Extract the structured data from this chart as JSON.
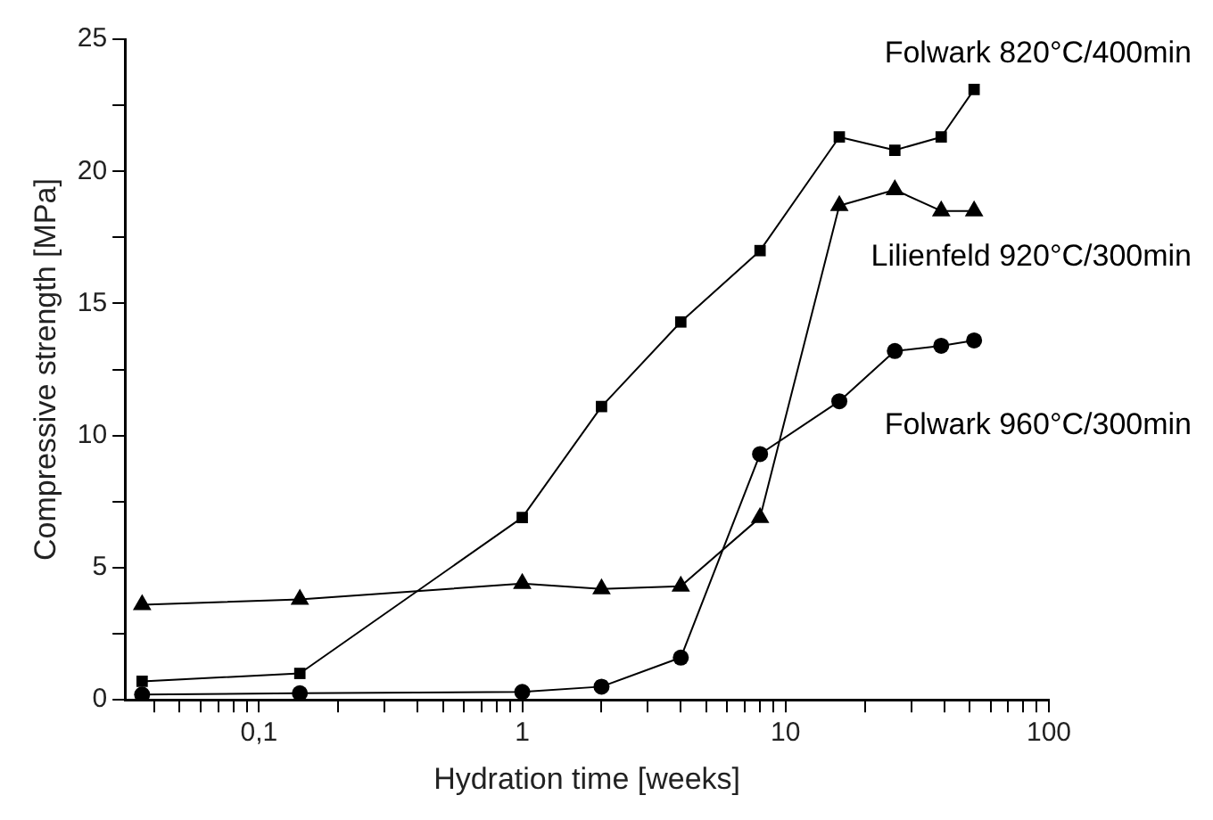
{
  "chart_data": {
    "type": "line",
    "xlabel": "Hydration time [weeks]",
    "ylabel": "Compressive strength [MPa]",
    "log": "x",
    "grid": false,
    "legend": false,
    "line_style": "solid",
    "x": [
      0.036,
      0.143,
      1,
      2,
      4,
      8,
      16,
      26,
      39,
      52
    ],
    "xlim": [
      0.031,
      100
    ],
    "xticks": [
      {
        "value": 0.04,
        "label": null
      },
      {
        "value": 0.05,
        "label": null
      },
      {
        "value": 0.06,
        "label": null
      },
      {
        "value": 0.07,
        "label": null
      },
      {
        "value": 0.08,
        "label": null
      },
      {
        "value": 0.09,
        "label": null
      },
      {
        "value": 0.1,
        "label": "0,1"
      },
      {
        "value": 0.2,
        "label": null
      },
      {
        "value": 0.3,
        "label": null
      },
      {
        "value": 0.4,
        "label": null
      },
      {
        "value": 0.5,
        "label": null
      },
      {
        "value": 0.6,
        "label": null
      },
      {
        "value": 0.7,
        "label": null
      },
      {
        "value": 0.8,
        "label": null
      },
      {
        "value": 0.9,
        "label": null
      },
      1,
      {
        "value": 2,
        "label": null
      },
      {
        "value": 3,
        "label": null
      },
      {
        "value": 4,
        "label": null
      },
      {
        "value": 5,
        "label": null
      },
      {
        "value": 6,
        "label": null
      },
      {
        "value": 7,
        "label": null
      },
      {
        "value": 8,
        "label": null
      },
      {
        "value": 9,
        "label": null
      },
      10,
      {
        "value": 20,
        "label": null
      },
      {
        "value": 30,
        "label": null
      },
      {
        "value": 40,
        "label": null
      },
      {
        "value": 50,
        "label": null
      },
      {
        "value": 60,
        "label": null
      },
      {
        "value": 70,
        "label": null
      },
      {
        "value": 80,
        "label": null
      },
      {
        "value": 90,
        "label": null
      },
      100
    ],
    "ylim": [
      0,
      25
    ],
    "yticks": [
      0,
      {
        "value": 2.5,
        "label": null
      },
      5,
      {
        "value": 7.5,
        "label": null
      },
      10,
      {
        "value": 12.5,
        "label": null
      },
      15,
      {
        "value": 17.5,
        "label": null
      },
      20,
      {
        "value": 22.5,
        "label": null
      },
      25
    ],
    "series": [
      {
        "name": "Folwark 820°C/400min",
        "color": "#000000",
        "marker": "square",
        "values": [
          0.7,
          1.0,
          6.9,
          11.1,
          14.3,
          17.0,
          21.3,
          20.8,
          21.3,
          23.1
        ]
      },
      {
        "name": "Lilienfeld 920°C/300min",
        "color": "#000000",
        "marker": "triangle",
        "values": [
          3.6,
          3.8,
          4.4,
          4.2,
          4.3,
          6.9,
          18.7,
          19.3,
          18.5,
          18.5
        ]
      },
      {
        "name": "Folwark 960°C/300min",
        "color": "#000000",
        "marker": "circle",
        "values": [
          0.2,
          0.25,
          0.3,
          0.5,
          1.6,
          9.3,
          11.3,
          13.2,
          13.4,
          13.6
        ]
      }
    ]
  }
}
